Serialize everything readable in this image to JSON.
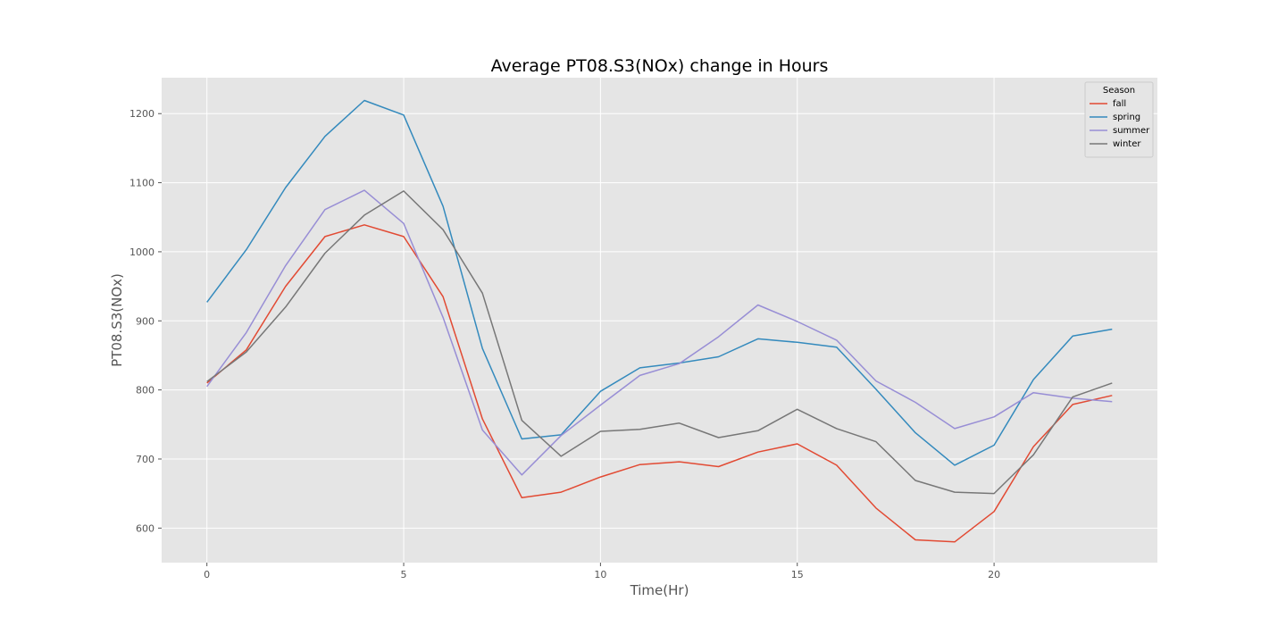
{
  "chart_data": {
    "type": "line",
    "title": "Average PT08.S3(NOx) change in Hours",
    "xlabel": "Time(Hr)",
    "ylabel": "PT08.S3(NOx)",
    "xlim": [
      -1.15,
      24.15
    ],
    "ylim": [
      550,
      1252
    ],
    "xticks": [
      0,
      5,
      10,
      15,
      20
    ],
    "yticks": [
      600,
      700,
      800,
      900,
      1000,
      1100,
      1200
    ],
    "grid": true,
    "legend": {
      "title": "Season",
      "placement": "top-right"
    },
    "x": [
      0,
      1,
      2,
      3,
      4,
      5,
      6,
      7,
      8,
      9,
      10,
      11,
      12,
      13,
      14,
      15,
      16,
      17,
      18,
      19,
      20,
      21,
      22,
      23
    ],
    "series": [
      {
        "name": "fall",
        "color": "#E24A33",
        "values": [
          810,
          858,
          950,
          1022,
          1039,
          1022,
          935,
          758,
          644,
          652,
          674,
          692,
          696,
          689,
          710,
          722,
          691,
          629,
          583,
          580,
          624,
          718,
          779,
          792
        ]
      },
      {
        "name": "spring",
        "color": "#348ABD",
        "values": [
          927,
          1003,
          1093,
          1167,
          1219,
          1198,
          1066,
          860,
          729,
          735,
          798,
          832,
          839,
          848,
          874,
          869,
          862,
          801,
          738,
          691,
          720,
          815,
          878,
          888
        ]
      },
      {
        "name": "summer",
        "color": "#988ED5",
        "values": [
          805,
          883,
          980,
          1061,
          1089,
          1041,
          905,
          742,
          677,
          734,
          778,
          821,
          838,
          877,
          923,
          899,
          872,
          813,
          782,
          744,
          761,
          796,
          788,
          783
        ]
      },
      {
        "name": "winter",
        "color": "#777777",
        "values": [
          812,
          855,
          920,
          998,
          1053,
          1088,
          1032,
          940,
          756,
          704,
          740,
          743,
          752,
          731,
          741,
          772,
          744,
          725,
          669,
          652,
          650,
          706,
          790,
          810
        ]
      }
    ]
  }
}
